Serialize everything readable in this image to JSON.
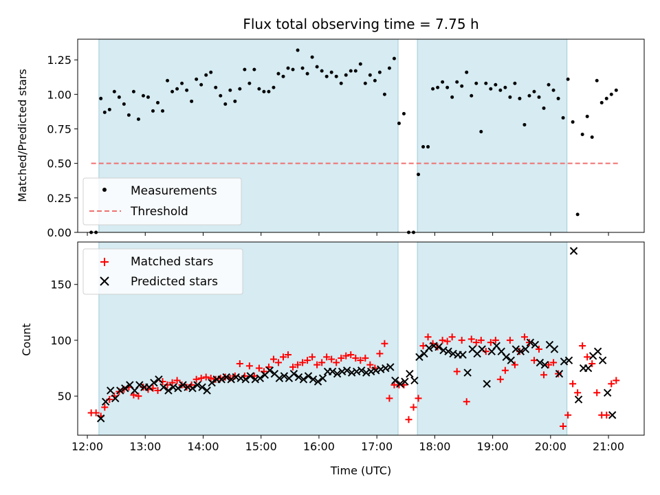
{
  "chart_data": [
    {
      "type": "scatter",
      "title": "Flux total observing time = 7.75 h",
      "xlabel": "",
      "ylabel": "Matched/Predicted stars",
      "xlim": [
        "11:50",
        "21:37"
      ],
      "ylim": [
        0,
        1.4
      ],
      "x_ticks": [
        "12:00",
        "13:00",
        "14:00",
        "15:00",
        "16:00",
        "17:00",
        "18:00",
        "19:00",
        "20:00",
        "21:00"
      ],
      "y_ticks": [
        "0.00",
        "0.25",
        "0.50",
        "0.75",
        "1.00",
        "1.25"
      ],
      "shaded_spans": [
        [
          "12:12",
          "17:22"
        ],
        [
          "17:42",
          "20:17"
        ]
      ],
      "legend_position": "lower-left",
      "series": [
        {
          "name": "Measurements",
          "marker": "dot",
          "color": "#000000",
          "x": [
            "12:04",
            "12:09",
            "12:14",
            "12:18",
            "12:23",
            "12:28",
            "12:33",
            "12:38",
            "12:43",
            "12:48",
            "12:53",
            "12:58",
            "13:03",
            "13:08",
            "13:13",
            "13:18",
            "13:23",
            "13:28",
            "13:33",
            "13:38",
            "13:43",
            "13:48",
            "13:53",
            "13:58",
            "14:03",
            "14:08",
            "14:13",
            "14:18",
            "14:23",
            "14:28",
            "14:33",
            "14:38",
            "14:43",
            "14:48",
            "14:53",
            "14:58",
            "15:03",
            "15:08",
            "15:13",
            "15:18",
            "15:23",
            "15:28",
            "15:33",
            "15:38",
            "15:43",
            "15:48",
            "15:53",
            "15:58",
            "16:03",
            "16:08",
            "16:13",
            "16:18",
            "16:23",
            "16:28",
            "16:33",
            "16:38",
            "16:43",
            "16:48",
            "16:53",
            "16:58",
            "17:03",
            "17:08",
            "17:13",
            "17:18",
            "17:23",
            "17:28",
            "17:33",
            "17:38",
            "17:43",
            "17:48",
            "17:53",
            "17:58",
            "18:03",
            "18:08",
            "18:13",
            "18:18",
            "18:23",
            "18:28",
            "18:33",
            "18:38",
            "18:43",
            "18:48",
            "18:53",
            "18:58",
            "19:03",
            "19:08",
            "19:13",
            "19:18",
            "19:23",
            "19:28",
            "19:33",
            "19:38",
            "19:43",
            "19:48",
            "19:53",
            "19:58",
            "20:03",
            "20:08",
            "20:13",
            "20:18",
            "20:23",
            "20:28",
            "20:33",
            "20:38",
            "20:43",
            "20:48",
            "20:53",
            "20:58",
            "21:03",
            "21:08"
          ],
          "y": [
            0.0,
            0.0,
            0.97,
            0.87,
            0.89,
            1.02,
            0.98,
            0.93,
            0.85,
            1.02,
            0.82,
            0.99,
            0.98,
            0.88,
            0.94,
            0.88,
            1.1,
            1.02,
            1.04,
            1.08,
            1.03,
            0.95,
            1.11,
            1.07,
            1.14,
            1.16,
            1.05,
            0.99,
            0.93,
            1.03,
            0.95,
            1.04,
            1.18,
            1.08,
            1.18,
            1.04,
            1.02,
            1.02,
            1.05,
            1.15,
            1.13,
            1.19,
            1.18,
            1.32,
            1.19,
            1.15,
            1.27,
            1.2,
            1.17,
            1.13,
            1.16,
            1.13,
            1.08,
            1.14,
            1.17,
            1.17,
            1.22,
            1.08,
            1.14,
            1.1,
            1.16,
            1.0,
            1.19,
            1.26,
            0.79,
            0.86,
            0.0,
            0.0,
            0.42,
            0.62,
            0.62,
            1.04,
            1.05,
            1.09,
            1.05,
            0.98,
            1.09,
            1.06,
            1.16,
            0.99,
            1.08,
            0.73,
            1.08,
            1.04,
            1.07,
            1.03,
            1.05,
            0.98,
            1.08,
            0.97,
            0.78,
            0.99,
            1.02,
            0.98,
            0.9,
            1.07,
            1.03,
            0.97,
            0.83,
            1.11,
            0.8,
            0.13,
            0.71,
            0.84,
            0.69,
            1.1,
            0.94,
            0.97,
            1.0,
            1.03
          ]
        },
        {
          "name": "Threshold",
          "type": "line",
          "style": "dashed",
          "color": "#f07070",
          "x": [
            "12:04",
            "21:10"
          ],
          "y": [
            0.5,
            0.5
          ]
        }
      ]
    },
    {
      "type": "scatter",
      "title": "",
      "xlabel": "Time (UTC)",
      "ylabel": "Count",
      "xlim": [
        "11:50",
        "21:37"
      ],
      "ylim": [
        15,
        188
      ],
      "x_ticks": [
        "12:00",
        "13:00",
        "14:00",
        "15:00",
        "16:00",
        "17:00",
        "18:00",
        "19:00",
        "20:00",
        "21:00"
      ],
      "y_ticks": [
        "50",
        "100",
        "150"
      ],
      "shaded_spans": [
        [
          "12:12",
          "17:22"
        ],
        [
          "17:42",
          "20:17"
        ]
      ],
      "legend_position": "top-left",
      "series": [
        {
          "name": "Matched stars",
          "marker": "plus",
          "color": "#ff0000",
          "x": [
            "12:04",
            "12:09",
            "12:14",
            "12:18",
            "12:23",
            "12:28",
            "12:33",
            "12:38",
            "12:43",
            "12:48",
            "12:53",
            "12:58",
            "13:03",
            "13:08",
            "13:13",
            "13:18",
            "13:23",
            "13:28",
            "13:33",
            "13:38",
            "13:43",
            "13:48",
            "13:53",
            "13:58",
            "14:03",
            "14:08",
            "14:13",
            "14:18",
            "14:23",
            "14:28",
            "14:33",
            "14:38",
            "14:43",
            "14:48",
            "14:53",
            "14:58",
            "15:03",
            "15:08",
            "15:13",
            "15:18",
            "15:23",
            "15:28",
            "15:33",
            "15:38",
            "15:43",
            "15:48",
            "15:53",
            "15:58",
            "16:03",
            "16:08",
            "16:13",
            "16:18",
            "16:23",
            "16:28",
            "16:33",
            "16:38",
            "16:43",
            "16:48",
            "16:53",
            "16:58",
            "17:03",
            "17:08",
            "17:13",
            "17:18",
            "17:23",
            "17:28",
            "17:33",
            "17:38",
            "17:43",
            "17:48",
            "17:53",
            "17:58",
            "18:03",
            "18:08",
            "18:13",
            "18:18",
            "18:23",
            "18:28",
            "18:33",
            "18:38",
            "18:43",
            "18:48",
            "18:53",
            "18:58",
            "19:03",
            "19:08",
            "19:13",
            "19:18",
            "19:23",
            "19:28",
            "19:33",
            "19:38",
            "19:43",
            "19:48",
            "19:53",
            "19:58",
            "20:03",
            "20:08",
            "20:13",
            "20:18",
            "20:23",
            "20:28",
            "20:33",
            "20:38",
            "20:43",
            "20:48",
            "20:53",
            "20:58",
            "21:03",
            "21:08"
          ],
          "y": [
            35,
            35,
            32,
            40,
            47,
            50,
            54,
            56,
            58,
            51,
            50,
            58,
            56,
            57,
            55,
            63,
            60,
            62,
            64,
            60,
            58,
            60,
            65,
            66,
            67,
            66,
            65,
            66,
            67,
            66,
            68,
            79,
            68,
            77,
            68,
            75,
            72,
            76,
            83,
            80,
            85,
            87,
            76,
            78,
            80,
            82,
            85,
            78,
            80,
            85,
            83,
            80,
            84,
            86,
            87,
            84,
            82,
            84,
            78,
            75,
            88,
            97,
            48,
            60,
            60,
            60,
            29,
            40,
            48,
            95,
            103,
            97,
            94,
            100,
            99,
            103,
            72,
            100,
            45,
            101,
            98,
            100,
            90,
            98,
            100,
            65,
            73,
            100,
            78,
            90,
            103,
            98,
            82,
            92,
            69,
            78,
            80,
            70,
            23,
            33,
            61,
            53,
            95,
            85,
            79,
            53,
            33,
            33,
            61,
            64
          ]
        },
        {
          "name": "Predicted stars",
          "marker": "x",
          "color": "#000000",
          "x": [
            "12:14",
            "12:19",
            "12:24",
            "12:29",
            "12:34",
            "12:39",
            "12:44",
            "12:49",
            "12:54",
            "12:59",
            "13:04",
            "13:09",
            "13:14",
            "13:19",
            "13:24",
            "13:29",
            "13:34",
            "13:39",
            "13:44",
            "13:49",
            "13:54",
            "13:59",
            "14:04",
            "14:09",
            "14:14",
            "14:19",
            "14:24",
            "14:29",
            "14:34",
            "14:39",
            "14:44",
            "14:49",
            "14:54",
            "14:59",
            "15:04",
            "15:09",
            "15:14",
            "15:19",
            "15:24",
            "15:29",
            "15:34",
            "15:39",
            "15:44",
            "15:49",
            "15:54",
            "15:59",
            "16:04",
            "16:09",
            "16:14",
            "16:19",
            "16:24",
            "16:29",
            "16:34",
            "16:39",
            "16:44",
            "16:49",
            "16:54",
            "16:59",
            "17:04",
            "17:09",
            "17:14",
            "17:19",
            "17:24",
            "17:29",
            "17:34",
            "17:39",
            "17:44",
            "17:49",
            "17:54",
            "17:59",
            "18:04",
            "18:09",
            "18:14",
            "18:19",
            "18:24",
            "18:29",
            "18:34",
            "18:39",
            "18:44",
            "18:49",
            "18:54",
            "18:59",
            "19:04",
            "19:09",
            "19:14",
            "19:19",
            "19:24",
            "19:29",
            "19:34",
            "19:39",
            "19:44",
            "19:49",
            "19:54",
            "19:59",
            "20:04",
            "20:09",
            "20:14",
            "20:19",
            "20:24",
            "20:29",
            "20:34",
            "20:39",
            "20:44",
            "20:49",
            "20:54",
            "20:59",
            "21:04"
          ],
          "y": [
            30,
            45,
            55,
            48,
            55,
            57,
            60,
            55,
            60,
            58,
            58,
            62,
            65,
            58,
            55,
            58,
            57,
            60,
            58,
            57,
            60,
            58,
            55,
            62,
            65,
            65,
            67,
            65,
            67,
            66,
            65,
            68,
            65,
            66,
            69,
            73,
            70,
            66,
            68,
            66,
            70,
            67,
            65,
            68,
            65,
            63,
            66,
            72,
            72,
            70,
            72,
            73,
            71,
            72,
            73,
            71,
            72,
            73,
            74,
            75,
            76,
            64,
            61,
            63,
            70,
            64,
            85,
            88,
            93,
            95,
            94,
            91,
            90,
            88,
            87,
            87,
            71,
            92,
            88,
            92,
            61,
            90,
            95,
            90,
            85,
            82,
            92,
            90,
            92,
            98,
            96,
            80,
            78,
            96,
            92,
            70,
            81,
            82,
            180,
            47,
            75,
            75,
            86,
            90,
            82,
            53,
            33
          ]
        }
      ]
    }
  ]
}
